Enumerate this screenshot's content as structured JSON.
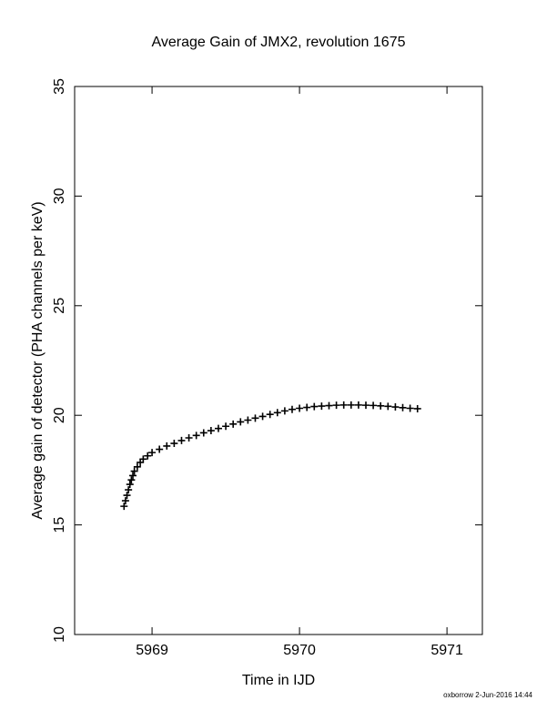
{
  "chart_data": {
    "type": "scatter",
    "title": "Average Gain of JMX2, revolution 1675",
    "x_label": "Time in IJD",
    "y_label": "Average gain of detector (PHA channels per keV)",
    "marker": "+",
    "color": "#000000",
    "x": [
      5968.81,
      5968.82,
      5968.83,
      5968.84,
      5968.85,
      5968.86,
      5968.87,
      5968.88,
      5968.9,
      5968.92,
      5968.94,
      5968.97,
      5969.0,
      5969.05,
      5969.1,
      5969.15,
      5969.2,
      5969.25,
      5969.3,
      5969.35,
      5969.4,
      5969.45,
      5969.5,
      5969.55,
      5969.6,
      5969.65,
      5969.7,
      5969.75,
      5969.8,
      5969.85,
      5969.9,
      5969.95,
      5970.0,
      5970.05,
      5970.1,
      5970.15,
      5970.2,
      5970.25,
      5970.3,
      5970.35,
      5970.4,
      5970.45,
      5970.5,
      5970.55,
      5970.6,
      5970.65,
      5970.7,
      5970.75,
      5970.8
    ],
    "values": [
      15.85,
      16.1,
      16.35,
      16.6,
      16.85,
      17.05,
      17.25,
      17.45,
      17.65,
      17.85,
      18.0,
      18.15,
      18.3,
      18.45,
      18.6,
      18.72,
      18.85,
      18.97,
      19.08,
      19.2,
      19.3,
      19.4,
      19.5,
      19.6,
      19.7,
      19.78,
      19.87,
      19.95,
      20.04,
      20.12,
      20.2,
      20.27,
      20.32,
      20.36,
      20.4,
      20.42,
      20.44,
      20.46,
      20.47,
      20.47,
      20.47,
      20.46,
      20.45,
      20.43,
      20.41,
      20.38,
      20.35,
      20.32,
      20.3
    ],
    "xlim": [
      5968.475,
      5971.24
    ],
    "xticks": [
      5969,
      5970,
      5971
    ],
    "ylim": [
      10,
      35
    ],
    "yticks": [
      10,
      15,
      20,
      25,
      30,
      35
    ]
  },
  "footer": "oxborrow  2-Jun-2016 14:44"
}
